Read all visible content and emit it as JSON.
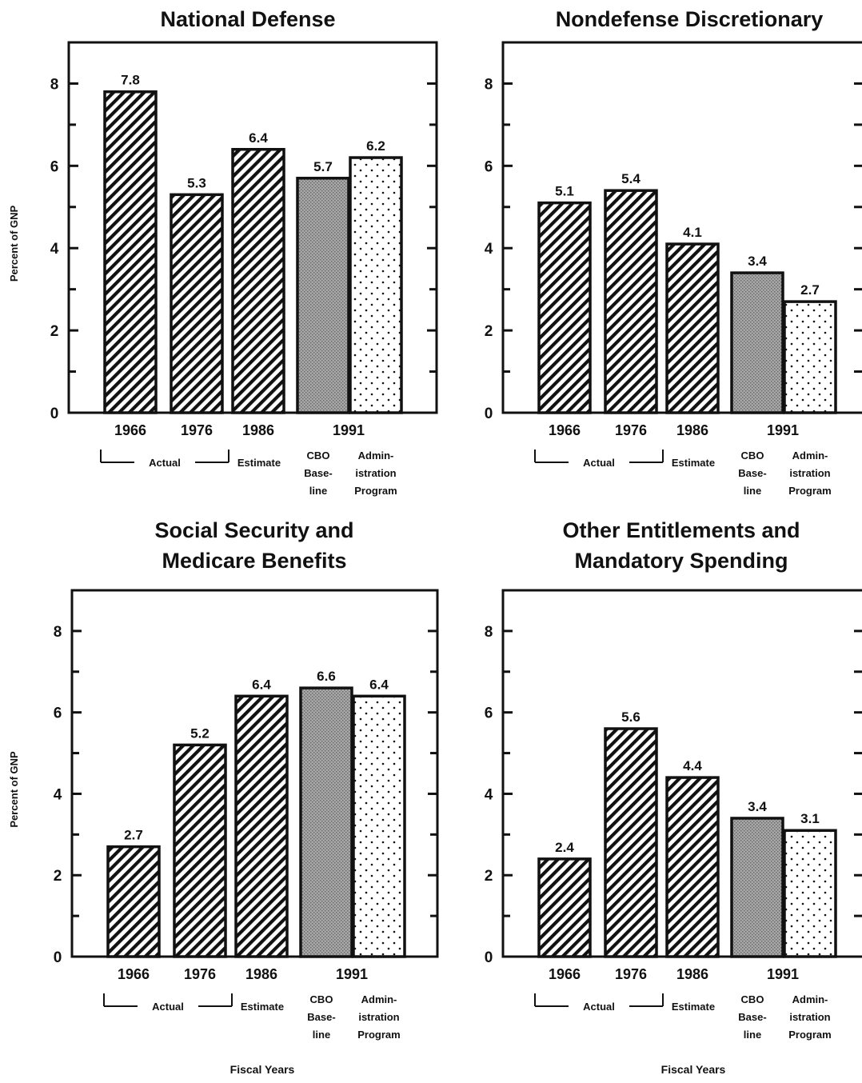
{
  "colors": {
    "ink": "#111111",
    "background": "#ffffff",
    "baseline_fill": "#9a9a9a"
  },
  "x_group_labels": {
    "actual": "Actual",
    "estimate": "Estimate",
    "cbo": [
      "CBO",
      "Base-",
      "line"
    ],
    "admin": [
      "Admin-",
      "istration",
      "Program"
    ]
  },
  "chart_data": [
    {
      "type": "bar",
      "title": [
        "National Defense"
      ],
      "ylabel": "Percent of GNP",
      "xlabel": "",
      "categories": [
        "1966",
        "1976",
        "1986",
        "1991",
        "1991"
      ],
      "year_labels": [
        "1966",
        "1976",
        "1986",
        "1991"
      ],
      "values": [
        7.8,
        5.3,
        6.4,
        5.7,
        6.2
      ],
      "value_labels": [
        "7.8",
        "5.3",
        "6.4",
        "5.7",
        "6.2"
      ],
      "patterns": [
        "hatch",
        "hatch",
        "hatch",
        "gray",
        "dots"
      ],
      "ylim": [
        0,
        9
      ],
      "yticks": [
        "0",
        "2",
        "4",
        "6",
        "8"
      ],
      "grid": false
    },
    {
      "type": "bar",
      "title": [
        "Nondefense Discretionary"
      ],
      "ylabel": "",
      "xlabel": "",
      "categories": [
        "1966",
        "1976",
        "1986",
        "1991",
        "1991"
      ],
      "year_labels": [
        "1966",
        "1976",
        "1986",
        "1991"
      ],
      "values": [
        5.1,
        5.4,
        4.1,
        3.4,
        2.7
      ],
      "value_labels": [
        "5.1",
        "5.4",
        "4.1",
        "3.4",
        "2.7"
      ],
      "patterns": [
        "hatch",
        "hatch",
        "hatch",
        "gray",
        "dots"
      ],
      "ylim": [
        0,
        9
      ],
      "yticks": [
        "0",
        "2",
        "4",
        "6",
        "8"
      ],
      "grid": false
    },
    {
      "type": "bar",
      "title": [
        "Social Security and",
        "Medicare Benefits"
      ],
      "ylabel": "Percent of GNP",
      "xlabel": "Fiscal Years",
      "categories": [
        "1966",
        "1976",
        "1986",
        "1991",
        "1991"
      ],
      "year_labels": [
        "1966",
        "1976",
        "1986",
        "1991"
      ],
      "values": [
        2.7,
        5.2,
        6.4,
        6.6,
        6.4
      ],
      "value_labels": [
        "2.7",
        "5.2",
        "6.4",
        "6.6",
        "6.4"
      ],
      "patterns": [
        "hatch",
        "hatch",
        "hatch",
        "gray",
        "dots"
      ],
      "ylim": [
        0,
        9
      ],
      "yticks": [
        "0",
        "2",
        "4",
        "6",
        "8"
      ],
      "grid": false
    },
    {
      "type": "bar",
      "title": [
        "Other Entitlements and",
        "Mandatory Spending"
      ],
      "ylabel": "",
      "xlabel": "Fiscal Years",
      "categories": [
        "1966",
        "1976",
        "1986",
        "1991",
        "1991"
      ],
      "year_labels": [
        "1966",
        "1976",
        "1986",
        "1991"
      ],
      "values": [
        2.4,
        5.6,
        4.4,
        3.4,
        3.1
      ],
      "value_labels": [
        "2.4",
        "5.6",
        "4.4",
        "3.4",
        "3.1"
      ],
      "patterns": [
        "hatch",
        "hatch",
        "hatch",
        "gray",
        "dots"
      ],
      "ylim": [
        0,
        9
      ],
      "yticks": [
        "0",
        "2",
        "4",
        "6",
        "8"
      ],
      "grid": false
    }
  ]
}
